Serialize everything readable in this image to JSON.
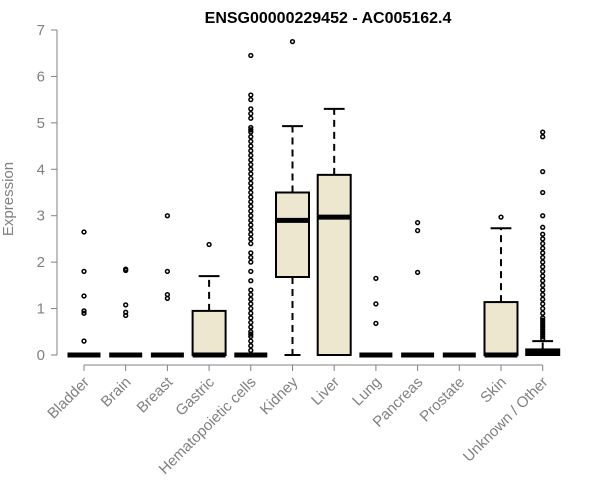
{
  "chart_data": {
    "type": "box",
    "title": "ENSG00000229452 - AC005162.4",
    "xlabel": "",
    "ylabel": "Expression",
    "ylim": [
      0,
      7
    ],
    "yticks": [
      0,
      1,
      2,
      3,
      4,
      5,
      6,
      7
    ],
    "categories": [
      "Bladder",
      "Brain",
      "Breast",
      "Gastric",
      "Hematopoietic cells",
      "Kidney",
      "Liver",
      "Lung",
      "Pancreas",
      "Prostate",
      "Skin",
      "Unknown / Other"
    ],
    "colors": {
      "box_fill": "#ede7cf",
      "box_stroke": "#000000",
      "axis": "#808080",
      "title": "#000000"
    },
    "boxes": [
      {
        "category": "Bladder",
        "min": 0,
        "q1": 0,
        "median": 0,
        "q3": 0,
        "max": 0,
        "outliers": [
          2.65,
          1.8,
          1.27,
          0.95,
          0.9,
          0.3
        ]
      },
      {
        "category": "Brain",
        "min": 0,
        "q1": 0,
        "median": 0,
        "q3": 0,
        "max": 0,
        "outliers": [
          1.85,
          1.82,
          1.08,
          0.92,
          0.85
        ]
      },
      {
        "category": "Breast",
        "min": 0,
        "q1": 0,
        "median": 0,
        "q3": 0,
        "max": 0,
        "outliers": [
          3.0,
          1.8,
          1.3,
          1.22
        ]
      },
      {
        "category": "Gastric",
        "min": 0,
        "q1": 0,
        "median": 0,
        "q3": 0.95,
        "max": 1.7,
        "outliers": [
          2.38
        ]
      },
      {
        "category": "Hematopoietic cells",
        "min": 0,
        "q1": 0,
        "median": 0,
        "q3": 0,
        "max": 0,
        "outliers": [
          6.45,
          5.6,
          5.5,
          5.3,
          5.2,
          5.1,
          4.9,
          4.85,
          4.8,
          4.7,
          4.6,
          4.5,
          4.4,
          4.3,
          4.2,
          4.1,
          4.0,
          3.9,
          3.8,
          3.7,
          3.6,
          3.5,
          3.4,
          3.3,
          3.2,
          3.1,
          3.0,
          2.9,
          2.8,
          2.7,
          2.6,
          2.5,
          2.4,
          2.2,
          2.1,
          2.0,
          1.8,
          1.6,
          1.4,
          1.3,
          1.2,
          1.1,
          1.0,
          0.9,
          0.8,
          0.7,
          0.6,
          0.5,
          0.45,
          0.4,
          0.3,
          0.2,
          0.1
        ]
      },
      {
        "category": "Kidney",
        "min": 0,
        "q1": 1.68,
        "median": 2.9,
        "q3": 3.5,
        "max": 4.93,
        "outliers": [
          6.75
        ]
      },
      {
        "category": "Liver",
        "min": 0,
        "q1": 0,
        "median": 2.97,
        "q3": 3.88,
        "max": 5.3,
        "outliers": []
      },
      {
        "category": "Lung",
        "min": 0,
        "q1": 0,
        "median": 0,
        "q3": 0,
        "max": 0,
        "outliers": [
          1.65,
          1.1,
          0.68
        ]
      },
      {
        "category": "Pancreas",
        "min": 0,
        "q1": 0,
        "median": 0,
        "q3": 0,
        "max": 0,
        "outliers": [
          2.85,
          2.68,
          1.78
        ]
      },
      {
        "category": "Prostate",
        "min": 0,
        "q1": 0,
        "median": 0,
        "q3": 0,
        "max": 0,
        "outliers": []
      },
      {
        "category": "Skin",
        "min": 0,
        "q1": 0,
        "median": 0,
        "q3": 1.14,
        "max": 2.73,
        "outliers": [
          2.97
        ]
      },
      {
        "category": "Unknown / Other",
        "min": 0,
        "q1": 0,
        "median": 0.05,
        "q3": 0.12,
        "max": 0.3,
        "outliers": [
          4.8,
          4.7,
          3.95,
          3.5,
          3.0,
          2.75,
          2.6,
          2.5,
          2.4,
          2.3,
          2.2,
          2.1,
          2.0,
          1.9,
          1.8,
          1.7,
          1.6,
          1.5,
          1.4,
          1.3,
          1.2,
          1.1,
          1.0,
          0.9,
          0.8,
          0.75,
          0.7,
          0.65,
          0.6,
          0.55,
          0.5,
          0.45,
          0.4,
          0.35
        ]
      }
    ]
  }
}
